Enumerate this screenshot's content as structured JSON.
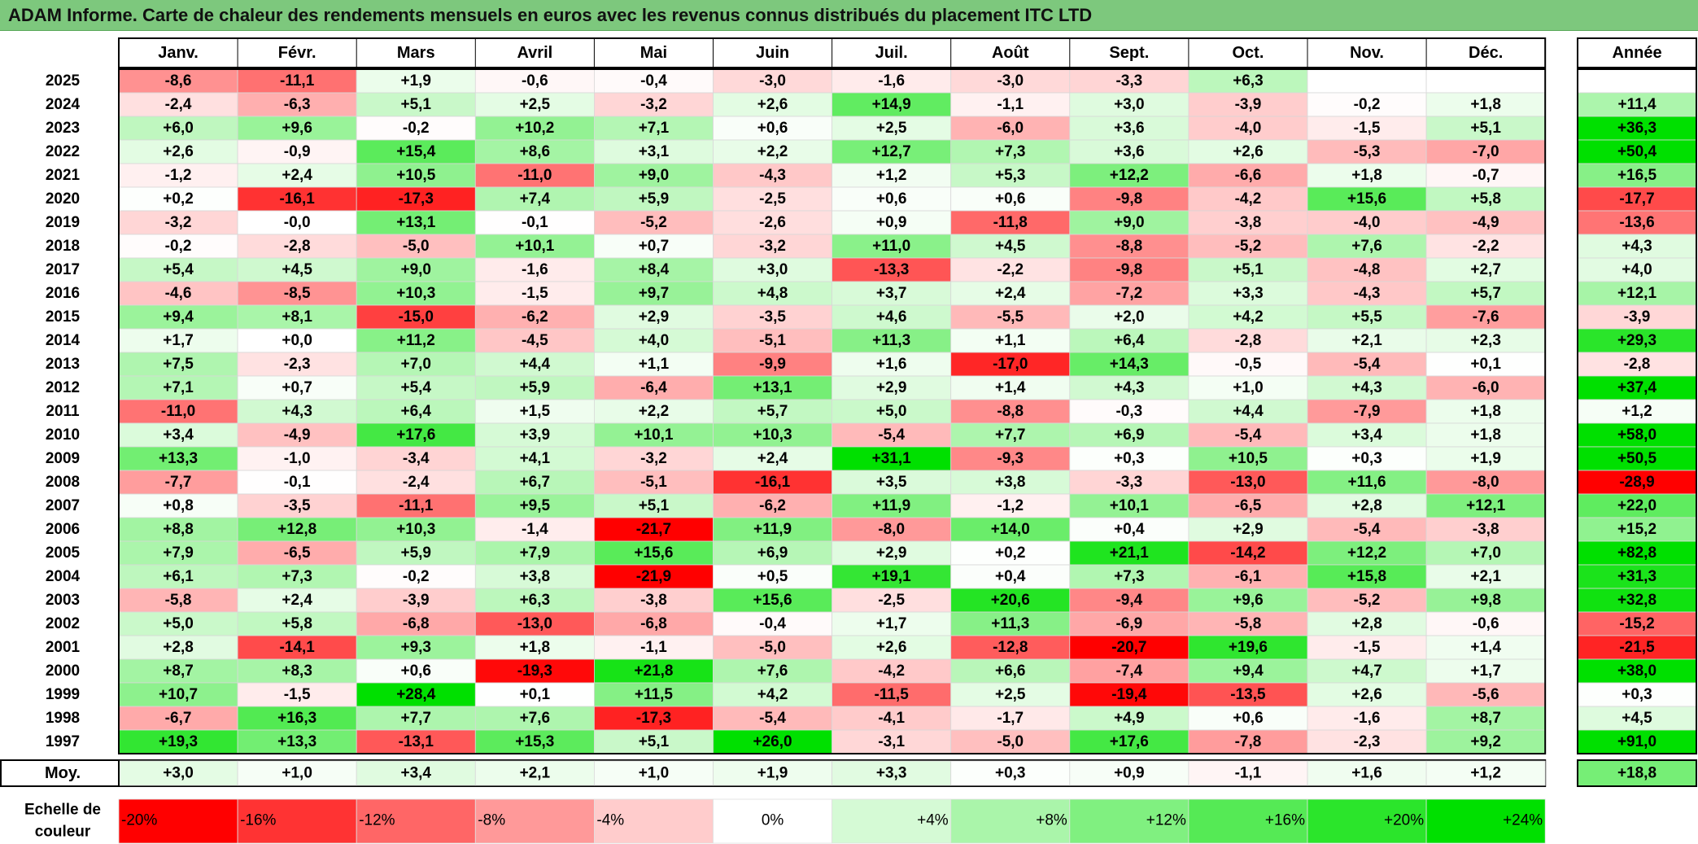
{
  "title": "ADAM Informe. Carte de chaleur des rendements mensuels en euros avec les revenus connus distribués du placement ITC LTD",
  "chart_data": {
    "type": "heatmap",
    "title": "ADAM Informe. Carte de chaleur des rendements mensuels en euros avec les revenus connus distribués du placement ITC LTD",
    "columns": [
      "Janv.",
      "Févr.",
      "Mars",
      "Avril",
      "Mai",
      "Juin",
      "Juil.",
      "Août",
      "Sept.",
      "Oct.",
      "Nov.",
      "Déc."
    ],
    "year_column_label": "Année",
    "rows": [
      {
        "year": "2025",
        "months": [
          "-8,6",
          "-11,1",
          "+1,9",
          "-0,6",
          "-0,4",
          "-3,0",
          "-1,6",
          "-3,0",
          "-3,3",
          "+6,3",
          "",
          ""
        ],
        "annual": ""
      },
      {
        "year": "2024",
        "months": [
          "-2,4",
          "-6,3",
          "+5,1",
          "+2,5",
          "-3,2",
          "+2,6",
          "+14,9",
          "-1,1",
          "+3,0",
          "-3,9",
          "-0,2",
          "+1,8"
        ],
        "annual": "+11,4"
      },
      {
        "year": "2023",
        "months": [
          "+6,0",
          "+9,6",
          "-0,2",
          "+10,2",
          "+7,1",
          "+0,6",
          "+2,5",
          "-6,0",
          "+3,6",
          "-4,0",
          "-1,5",
          "+5,1"
        ],
        "annual": "+36,3"
      },
      {
        "year": "2022",
        "months": [
          "+2,6",
          "-0,9",
          "+15,4",
          "+8,6",
          "+3,1",
          "+2,2",
          "+12,7",
          "+7,3",
          "+3,6",
          "+2,6",
          "-5,3",
          "-7,0"
        ],
        "annual": "+50,4"
      },
      {
        "year": "2021",
        "months": [
          "-1,2",
          "+2,4",
          "+10,5",
          "-11,0",
          "+9,0",
          "-4,3",
          "+1,2",
          "+5,3",
          "+12,2",
          "-6,6",
          "+1,8",
          "-0,7"
        ],
        "annual": "+16,5"
      },
      {
        "year": "2020",
        "months": [
          "+0,2",
          "-16,1",
          "-17,3",
          "+7,4",
          "+5,9",
          "-2,5",
          "+0,6",
          "+0,6",
          "-9,8",
          "-4,2",
          "+15,6",
          "+5,8"
        ],
        "annual": "-17,7"
      },
      {
        "year": "2019",
        "months": [
          "-3,2",
          "-0,0",
          "+13,1",
          "-0,1",
          "-5,2",
          "-2,6",
          "+0,9",
          "-11,8",
          "+9,0",
          "-3,8",
          "-4,0",
          "-4,9"
        ],
        "annual": "-13,6"
      },
      {
        "year": "2018",
        "months": [
          "-0,2",
          "-2,8",
          "-5,0",
          "+10,1",
          "+0,7",
          "-3,2",
          "+11,0",
          "+4,5",
          "-8,8",
          "-5,2",
          "+7,6",
          "-2,2"
        ],
        "annual": "+4,3"
      },
      {
        "year": "2017",
        "months": [
          "+5,4",
          "+4,5",
          "+9,0",
          "-1,6",
          "+8,4",
          "+3,0",
          "-13,3",
          "-2,2",
          "-9,8",
          "+5,1",
          "-4,8",
          "+2,7"
        ],
        "annual": "+4,0"
      },
      {
        "year": "2016",
        "months": [
          "-4,6",
          "-8,5",
          "+10,3",
          "-1,5",
          "+9,7",
          "+4,8",
          "+3,7",
          "+2,4",
          "-7,2",
          "+3,3",
          "-4,3",
          "+5,7"
        ],
        "annual": "+12,1"
      },
      {
        "year": "2015",
        "months": [
          "+9,4",
          "+8,1",
          "-15,0",
          "-6,2",
          "+2,9",
          "-3,5",
          "+4,6",
          "-5,5",
          "+2,0",
          "+4,2",
          "+5,5",
          "-7,6"
        ],
        "annual": "-3,9"
      },
      {
        "year": "2014",
        "months": [
          "+1,7",
          "+0,0",
          "+11,2",
          "-4,5",
          "+4,0",
          "-5,1",
          "+11,3",
          "+1,1",
          "+6,4",
          "-2,8",
          "+2,1",
          "+2,3"
        ],
        "annual": "+29,3"
      },
      {
        "year": "2013",
        "months": [
          "+7,5",
          "-2,3",
          "+7,0",
          "+4,4",
          "+1,1",
          "-9,9",
          "+1,6",
          "-17,0",
          "+14,3",
          "-0,5",
          "-5,4",
          "+0,1"
        ],
        "annual": "-2,8"
      },
      {
        "year": "2012",
        "months": [
          "+7,1",
          "+0,7",
          "+5,4",
          "+5,9",
          "-6,4",
          "+13,1",
          "+2,9",
          "+1,4",
          "+4,3",
          "+1,0",
          "+4,3",
          "-6,0"
        ],
        "annual": "+37,4"
      },
      {
        "year": "2011",
        "months": [
          "-11,0",
          "+4,3",
          "+6,4",
          "+1,5",
          "+2,2",
          "+5,7",
          "+5,0",
          "-8,8",
          "-0,3",
          "+4,4",
          "-7,9",
          "+1,8"
        ],
        "annual": "+1,2"
      },
      {
        "year": "2010",
        "months": [
          "+3,4",
          "-4,9",
          "+17,6",
          "+3,9",
          "+10,1",
          "+10,3",
          "-5,4",
          "+7,7",
          "+6,9",
          "-5,4",
          "+3,4",
          "+1,8"
        ],
        "annual": "+58,0"
      },
      {
        "year": "2009",
        "months": [
          "+13,3",
          "-1,0",
          "-3,4",
          "+4,1",
          "-3,2",
          "+2,4",
          "+31,1",
          "-9,3",
          "+0,3",
          "+10,5",
          "+0,3",
          "+1,9"
        ],
        "annual": "+50,5"
      },
      {
        "year": "2008",
        "months": [
          "-7,7",
          "-0,1",
          "-2,4",
          "+6,7",
          "-5,1",
          "-16,1",
          "+3,5",
          "+3,8",
          "-3,3",
          "-13,0",
          "+11,6",
          "-8,0"
        ],
        "annual": "-28,9"
      },
      {
        "year": "2007",
        "months": [
          "+0,8",
          "-3,5",
          "-11,1",
          "+9,5",
          "+5,1",
          "-6,2",
          "+11,9",
          "-1,2",
          "+10,1",
          "-6,5",
          "+2,8",
          "+12,1"
        ],
        "annual": "+22,0"
      },
      {
        "year": "2006",
        "months": [
          "+8,8",
          "+12,8",
          "+10,3",
          "-1,4",
          "-21,7",
          "+11,9",
          "-8,0",
          "+14,0",
          "+0,4",
          "+2,9",
          "-5,4",
          "-3,8"
        ],
        "annual": "+15,2"
      },
      {
        "year": "2005",
        "months": [
          "+7,9",
          "-6,5",
          "+5,9",
          "+7,9",
          "+15,6",
          "+6,9",
          "+2,9",
          "+0,2",
          "+21,1",
          "-14,2",
          "+12,2",
          "+7,0"
        ],
        "annual": "+82,8"
      },
      {
        "year": "2004",
        "months": [
          "+6,1",
          "+7,3",
          "-0,2",
          "+3,8",
          "-21,9",
          "+0,5",
          "+19,1",
          "+0,4",
          "+7,3",
          "-6,1",
          "+15,8",
          "+2,1"
        ],
        "annual": "+31,3"
      },
      {
        "year": "2003",
        "months": [
          "-5,8",
          "+2,4",
          "-3,9",
          "+6,3",
          "-3,8",
          "+15,6",
          "-2,5",
          "+20,6",
          "-9,4",
          "+9,6",
          "-5,2",
          "+9,8"
        ],
        "annual": "+32,8"
      },
      {
        "year": "2002",
        "months": [
          "+5,0",
          "+5,8",
          "-6,8",
          "-13,0",
          "-6,8",
          "-0,4",
          "+1,7",
          "+11,3",
          "-6,9",
          "-5,8",
          "+2,8",
          "-0,6"
        ],
        "annual": "-15,2"
      },
      {
        "year": "2001",
        "months": [
          "+2,8",
          "-14,1",
          "+9,3",
          "+1,8",
          "-1,1",
          "-5,0",
          "+2,6",
          "-12,8",
          "-20,7",
          "+19,6",
          "-1,5",
          "+1,4"
        ],
        "annual": "-21,5"
      },
      {
        "year": "2000",
        "months": [
          "+8,7",
          "+8,3",
          "+0,6",
          "-19,3",
          "+21,8",
          "+7,6",
          "-4,2",
          "+6,6",
          "-7,4",
          "+9,4",
          "+4,7",
          "+1,7"
        ],
        "annual": "+38,0"
      },
      {
        "year": "1999",
        "months": [
          "+10,7",
          "-1,5",
          "+28,4",
          "+0,1",
          "+11,5",
          "+4,2",
          "-11,5",
          "+2,5",
          "-19,4",
          "-13,5",
          "+2,6",
          "-5,6"
        ],
        "annual": "+0,3"
      },
      {
        "year": "1998",
        "months": [
          "-6,7",
          "+16,3",
          "+7,7",
          "+7,6",
          "-17,3",
          "-5,4",
          "-4,1",
          "-1,7",
          "+4,9",
          "+0,6",
          "-1,6",
          "+8,7"
        ],
        "annual": "+4,5"
      },
      {
        "year": "1997",
        "months": [
          "+19,3",
          "+13,3",
          "-13,1",
          "+15,3",
          "+5,1",
          "+26,0",
          "-3,1",
          "-5,0",
          "+17,6",
          "-7,8",
          "-2,3",
          "+9,2"
        ],
        "annual": "+91,0"
      }
    ],
    "average_row": {
      "label": "Moy.",
      "months": [
        "+3,0",
        "+1,0",
        "+3,4",
        "+2,1",
        "+1,0",
        "+1,9",
        "+3,3",
        "+0,3",
        "+0,9",
        "-1,1",
        "+1,6",
        "+1,2"
      ],
      "annual": "+18,8"
    },
    "color_scale": {
      "label_line1": "Echelle de",
      "label_line2": "couleur",
      "stops": [
        "-20%",
        "-16%",
        "-12%",
        "-8%",
        "-4%",
        "0%",
        "+4%",
        "+8%",
        "+12%",
        "+16%",
        "+20%",
        "+24%"
      ],
      "negative_color": "#ff0000",
      "zero_color": "#ffffff",
      "positive_color": "#00e000"
    }
  }
}
